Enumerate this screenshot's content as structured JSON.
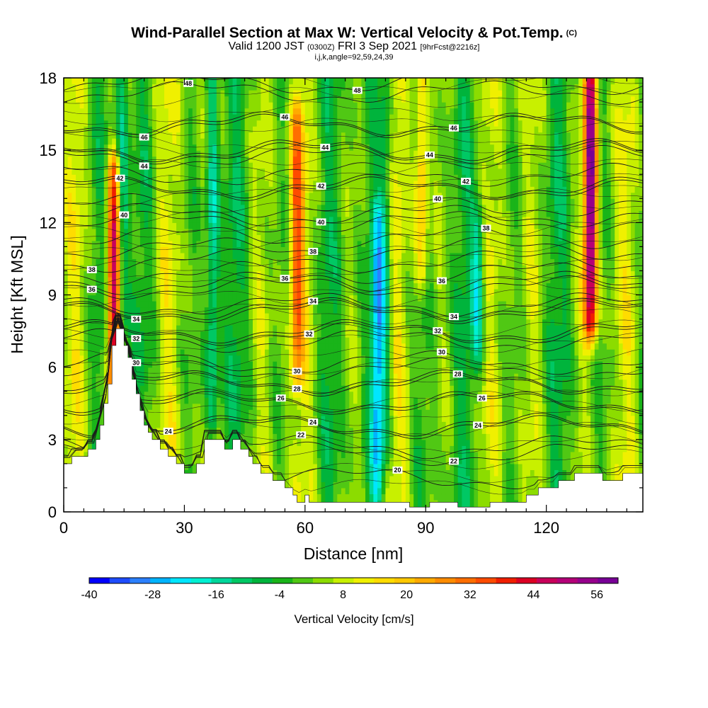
{
  "header": {
    "title": "Wind-Parallel Section at Max W: Vertical Velocity & Pot.Temp.",
    "title_unit": "(C)",
    "valid_prefix": "Valid 1200 JST",
    "valid_utc": "(0300Z)",
    "valid_date": "FRI 3 Sep 2021",
    "forecast_info": "[9hrFcst@2216z]",
    "grid_info": "i,j,k,angle=92,59,24,39"
  },
  "chart_data": {
    "type": "heatmap",
    "xlabel": "Distance [nm]",
    "ylabel": "Height [Kft MSL]",
    "xlim": [
      0,
      144
    ],
    "ylim": [
      0,
      18
    ],
    "x_ticks": [
      "0",
      "30",
      "60",
      "90",
      "120"
    ],
    "y_ticks": [
      "0",
      "3",
      "6",
      "9",
      "12",
      "15",
      "18"
    ],
    "x_tick_values": [
      0,
      30,
      60,
      90,
      120
    ],
    "y_tick_values": [
      0,
      3,
      6,
      9,
      12,
      15,
      18
    ],
    "grid": false,
    "colorbar": {
      "title": "Vertical Velocity [cm/s]",
      "labels": [
        "-40",
        "-28",
        "-16",
        "-4",
        "8",
        "20",
        "32",
        "44",
        "56"
      ],
      "label_values": [
        -40,
        -28,
        -16,
        -4,
        8,
        20,
        32,
        44,
        56
      ],
      "min": -40,
      "max": 60,
      "colors": [
        "#0000ff",
        "#1e4cff",
        "#2b80ff",
        "#00b4ff",
        "#00e6ff",
        "#00f0d2",
        "#00d79b",
        "#00c864",
        "#00b43c",
        "#19b419",
        "#50c814",
        "#8cdc00",
        "#c8f000",
        "#f0f000",
        "#ffdc00",
        "#ffc800",
        "#ffaa00",
        "#ff8c00",
        "#ff6e00",
        "#ff4b00",
        "#f01e00",
        "#dc0023",
        "#c8005a",
        "#b40078",
        "#96008c",
        "#780096"
      ]
    },
    "vertical_velocity_features": [
      {
        "x": 12.5,
        "z_bottom": 3,
        "z_top": 14.0,
        "w": 50
      },
      {
        "x": 14.5,
        "z_bottom": 8,
        "z_top": 18,
        "w": -16
      },
      {
        "x": 37,
        "z_bottom": 4,
        "z_top": 18,
        "w": -20
      },
      {
        "x": 58,
        "z_bottom": 6,
        "z_top": 16,
        "w": 30
      },
      {
        "x": 78,
        "z_bottom": 1,
        "z_top": 12,
        "w": -24
      },
      {
        "x": 80,
        "z_bottom": 3,
        "z_top": 18,
        "w": -12
      },
      {
        "x": 89,
        "z_bottom": 10,
        "z_top": 18,
        "w": 24
      },
      {
        "x": 103,
        "z_bottom": 7,
        "z_top": 12,
        "w": -18
      },
      {
        "x": 131,
        "z_bottom": 8,
        "z_top": 18,
        "w": 60
      }
    ],
    "terrain_kft": [
      [
        0,
        2.0
      ],
      [
        2,
        2.0
      ],
      [
        2,
        2.3
      ],
      [
        6,
        2.3
      ],
      [
        6,
        2.6
      ],
      [
        8,
        2.6
      ],
      [
        8,
        3.0
      ],
      [
        9,
        3.0
      ],
      [
        9,
        3.6
      ],
      [
        10,
        3.6
      ],
      [
        10,
        4.5
      ],
      [
        11,
        4.5
      ],
      [
        11,
        5.3
      ],
      [
        12,
        5.3
      ],
      [
        12,
        6.9
      ],
      [
        13,
        6.9
      ],
      [
        13,
        7.6
      ],
      [
        15,
        7.6
      ],
      [
        15,
        6.9
      ],
      [
        16,
        6.9
      ],
      [
        16,
        6.4
      ],
      [
        17,
        6.4
      ],
      [
        17,
        5.5
      ],
      [
        18,
        5.5
      ],
      [
        18,
        4.9
      ],
      [
        19,
        4.9
      ],
      [
        19,
        4.2
      ],
      [
        20,
        4.2
      ],
      [
        20,
        3.6
      ],
      [
        21,
        3.6
      ],
      [
        21,
        3.3
      ],
      [
        22,
        3.3
      ],
      [
        22,
        3.0
      ],
      [
        24,
        3.0
      ],
      [
        24,
        2.6
      ],
      [
        26,
        2.6
      ],
      [
        26,
        2.3
      ],
      [
        28,
        2.3
      ],
      [
        28,
        2.0
      ],
      [
        30,
        2.0
      ],
      [
        30,
        1.6
      ],
      [
        33,
        1.6
      ],
      [
        33,
        2.0
      ],
      [
        35,
        2.0
      ],
      [
        35,
        3.0
      ],
      [
        40,
        3.0
      ],
      [
        40,
        2.6
      ],
      [
        42,
        2.6
      ],
      [
        42,
        3.0
      ],
      [
        44,
        3.0
      ],
      [
        44,
        2.6
      ],
      [
        46,
        2.6
      ],
      [
        46,
        2.3
      ],
      [
        47,
        2.3
      ],
      [
        47,
        2.0
      ],
      [
        49,
        2.0
      ],
      [
        49,
        1.6
      ],
      [
        52,
        1.6
      ],
      [
        52,
        1.3
      ],
      [
        55,
        1.3
      ],
      [
        55,
        1.0
      ],
      [
        57,
        1.0
      ],
      [
        57,
        0.7
      ],
      [
        58,
        0.7
      ],
      [
        58,
        0.4
      ],
      [
        60,
        0.4
      ],
      [
        60,
        0.7
      ],
      [
        61,
        0.7
      ],
      [
        61,
        0.4
      ],
      [
        86,
        0.4
      ],
      [
        86,
        0.2
      ],
      [
        91,
        0.2
      ],
      [
        91,
        0.4
      ],
      [
        98,
        0.4
      ],
      [
        98,
        0.2
      ],
      [
        106,
        0.2
      ],
      [
        106,
        0.4
      ],
      [
        115,
        0.4
      ],
      [
        115,
        0.7
      ],
      [
        118,
        0.7
      ],
      [
        118,
        1.0
      ],
      [
        123,
        1.0
      ],
      [
        123,
        1.3
      ],
      [
        127,
        1.3
      ],
      [
        127,
        1.6
      ],
      [
        134,
        1.6
      ],
      [
        134,
        1.3
      ],
      [
        139,
        1.3
      ],
      [
        139,
        1.6
      ],
      [
        144,
        1.6
      ]
    ],
    "isentropes": [
      {
        "value": "20",
        "label_x": 83,
        "z_base": 1.4
      },
      {
        "value": "22",
        "label_x": 59,
        "z_base": 2.7
      },
      {
        "value": "22",
        "label_x": 97,
        "z_base": 2.4
      },
      {
        "value": "24",
        "label_x": 26,
        "z_base": 3.6
      },
      {
        "value": "24",
        "label_x": 62,
        "z_base": 3.6
      },
      {
        "value": "24",
        "label_x": 103,
        "z_base": 3.5
      },
      {
        "value": "26",
        "label_x": 54,
        "z_base": 4.6
      },
      {
        "value": "26",
        "label_x": 104,
        "z_base": 4.5
      },
      {
        "value": "28",
        "label_x": 58,
        "z_base": 5.4
      },
      {
        "value": "28",
        "label_x": 98,
        "z_base": 5.3
      },
      {
        "value": "30",
        "label_x": 18,
        "z_base": 5.9
      },
      {
        "value": "30",
        "label_x": 58,
        "z_base": 6.2
      },
      {
        "value": "30",
        "label_x": 94,
        "z_base": 6.2
      },
      {
        "value": "32",
        "label_x": 18,
        "z_base": 7.1
      },
      {
        "value": "32",
        "label_x": 61,
        "z_base": 7.4
      },
      {
        "value": "32",
        "label_x": 93,
        "z_base": 7.5
      },
      {
        "value": "34",
        "label_x": 18,
        "z_base": 8.3
      },
      {
        "value": "34",
        "label_x": 62,
        "z_base": 8.4
      },
      {
        "value": "34",
        "label_x": 97,
        "z_base": 8.6
      },
      {
        "value": "36",
        "label_x": 7,
        "z_base": 9.3
      },
      {
        "value": "36",
        "label_x": 55,
        "z_base": 9.5
      },
      {
        "value": "36",
        "label_x": 94,
        "z_base": 9.9
      },
      {
        "value": "38",
        "label_x": 7,
        "z_base": 10.4
      },
      {
        "value": "38",
        "label_x": 62,
        "z_base": 10.9
      },
      {
        "value": "38",
        "label_x": 105,
        "z_base": 11.4
      },
      {
        "value": "40",
        "label_x": 15,
        "z_base": 12.0
      },
      {
        "value": "40",
        "label_x": 64,
        "z_base": 12.3
      },
      {
        "value": "40",
        "label_x": 93,
        "z_base": 12.7
      },
      {
        "value": "42",
        "label_x": 14,
        "z_base": 13.4
      },
      {
        "value": "42",
        "label_x": 64,
        "z_base": 13.5
      },
      {
        "value": "42",
        "label_x": 100,
        "z_base": 14.0
      },
      {
        "value": "44",
        "label_x": 20,
        "z_base": 14.7
      },
      {
        "value": "44",
        "label_x": 65,
        "z_base": 14.9
      },
      {
        "value": "44",
        "label_x": 91,
        "z_base": 15.0
      },
      {
        "value": "46",
        "label_x": 20,
        "z_base": 16.0
      },
      {
        "value": "46",
        "label_x": 55,
        "z_base": 16.1
      },
      {
        "value": "46",
        "label_x": 97,
        "z_base": 16.1
      },
      {
        "value": "48",
        "label_x": 31,
        "z_base": 17.4
      },
      {
        "value": "48",
        "label_x": 73,
        "z_base": 17.8
      }
    ]
  }
}
